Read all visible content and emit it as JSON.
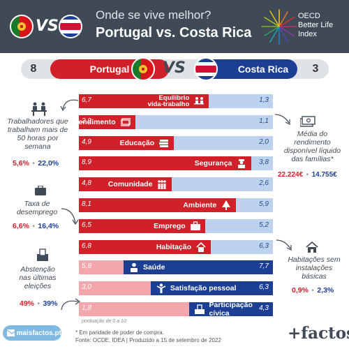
{
  "header": {
    "subtitle": "Onde se vive melhor?",
    "title": "Portugal vs. Costa Rica",
    "oecd_line1": "OECD",
    "oecd_line2": "Better Life",
    "oecd_line3": "Index",
    "vs": "VS"
  },
  "score": {
    "left_score": "8",
    "left_country": "Portugal",
    "vs": "VS",
    "right_country": "Costa Rica",
    "right_score": "3"
  },
  "rows": [
    {
      "label_line1": "Equilíbrio",
      "label_line2": "vida-trabalho",
      "pt": "6,7",
      "cr": "1,3",
      "pt_value": 6.7,
      "cr_value": 1.3,
      "winner": "pt",
      "icon": "work-life-icon"
    },
    {
      "label": "Rendimento",
      "pt": "2,9",
      "cr": "1,1",
      "pt_value": 2.9,
      "cr_value": 1.1,
      "winner": "pt",
      "icon": "money-icon"
    },
    {
      "label": "Educação",
      "pt": "4,9",
      "cr": "2,0",
      "pt_value": 4.9,
      "cr_value": 2.0,
      "winner": "pt",
      "icon": "books-icon"
    },
    {
      "label": "Segurança",
      "pt": "8,9",
      "cr": "3,8",
      "pt_value": 8.9,
      "cr_value": 3.8,
      "winner": "pt",
      "icon": "police-icon"
    },
    {
      "label": "Comunidade",
      "pt": "4,8",
      "cr": "2,6",
      "pt_value": 4.8,
      "cr_value": 2.6,
      "winner": "pt",
      "icon": "people-icon"
    },
    {
      "label": "Ambiente",
      "pt": "8,1",
      "cr": "5,9",
      "pt_value": 8.1,
      "cr_value": 5.9,
      "winner": "pt",
      "icon": "tree-icon"
    },
    {
      "label": "Emprego",
      "pt": "6,5",
      "cr": "5,2",
      "pt_value": 6.5,
      "cr_value": 5.2,
      "winner": "pt",
      "icon": "briefcase-icon"
    },
    {
      "label": "Habitação",
      "pt": "6,8",
      "cr": "6,3",
      "pt_value": 6.8,
      "cr_value": 6.3,
      "winner": "pt",
      "icon": "house-icon"
    },
    {
      "label": "Saúde",
      "pt": "5,8",
      "cr": "7,7",
      "pt_value": 5.8,
      "cr_value": 7.7,
      "winner": "cr",
      "icon": "doctor-icon"
    },
    {
      "label": "Satisfação pessoal",
      "pt": "3,0",
      "cr": "6,3",
      "pt_value": 3.0,
      "cr_value": 6.3,
      "winner": "cr",
      "icon": "person-icon"
    },
    {
      "label": "Participação cívica",
      "pt": "1,8",
      "cr": "4,3",
      "pt_value": 1.8,
      "cr_value": 4.3,
      "winner": "cr",
      "icon": "ballot-icon"
    }
  ],
  "axis_note": "pontuação de 0 a 10",
  "side_notes": {
    "hours": {
      "text_lines": [
        "Trabalhadores que",
        "trabalham mais de",
        "50 horas por",
        "semana"
      ],
      "pt": "5,6%",
      "cr": "22,0%"
    },
    "unemployment": {
      "text_lines": [
        "Taxa de",
        "desemprego"
      ],
      "pt": "6,6%",
      "cr": "16,4%"
    },
    "abstention": {
      "text_lines": [
        "Abstenção",
        "nas últimas",
        "eleições"
      ],
      "pt": "49%",
      "cr": "39%"
    },
    "income": {
      "text_lines": [
        "Média do",
        "rendimento",
        "disponível líquido",
        "das famílias*"
      ],
      "pt": "22.224€",
      "cr": "14.755€"
    },
    "housing": {
      "text_lines": [
        "Habitações sem",
        "instalações",
        "básicas"
      ],
      "pt": "0,9%",
      "cr": "2,3%"
    }
  },
  "footer": {
    "site": "maisfactos.pt",
    "note1": "* Em paridade de poder de compra.",
    "note2": "Fonte: OCDE, IDEA | Produzido a 15 de setembro de 2022",
    "brand": "+factos"
  },
  "colors": {
    "portugal": "#d0202a",
    "portugal_light": "#f3a6ab",
    "costa_rica": "#1c3f94",
    "costa_rica_light": "#bcd2ee",
    "header": "#3f4a56"
  }
}
